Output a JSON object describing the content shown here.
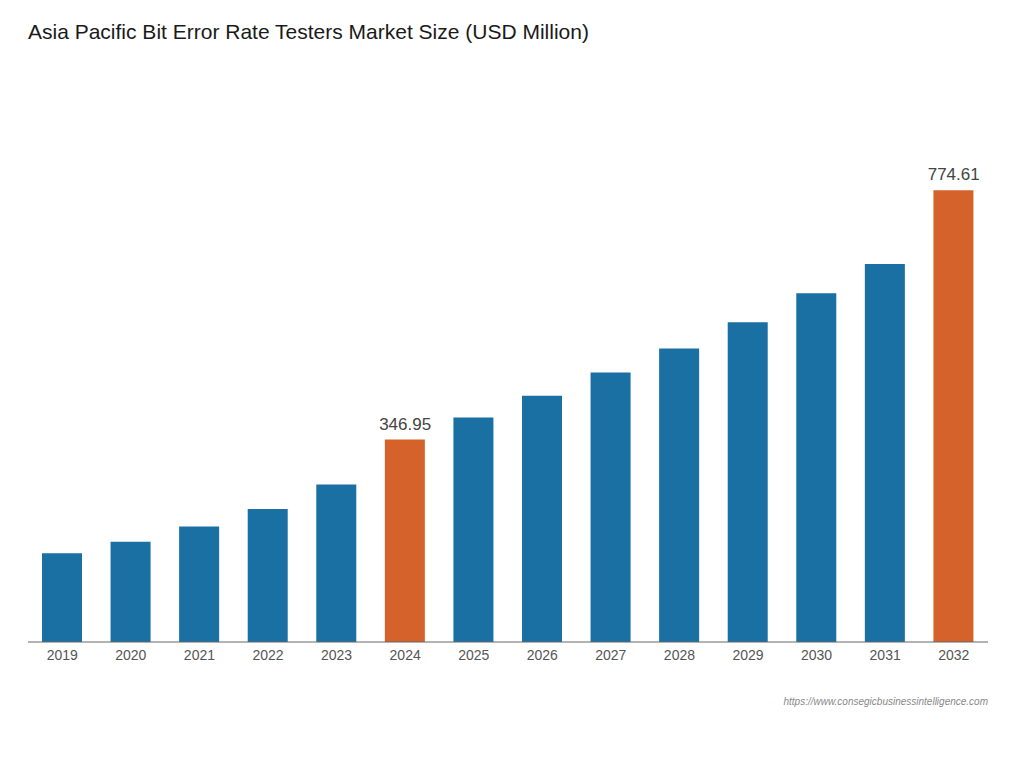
{
  "chart_data": {
    "type": "bar",
    "title": "Asia Pacific Bit Error Rate Testers Market Size (USD Million)",
    "categories": [
      "2019",
      "2020",
      "2021",
      "2022",
      "2023",
      "2024",
      "2025",
      "2026",
      "2027",
      "2028",
      "2029",
      "2030",
      "2031",
      "2032"
    ],
    "values": [
      152,
      172,
      198,
      228,
      270,
      346.95,
      385,
      422,
      462,
      503,
      548,
      598,
      648,
      774.61
    ],
    "colors": [
      "#1a6fa3",
      "#1a6fa3",
      "#1a6fa3",
      "#1a6fa3",
      "#1a6fa3",
      "#d4622a",
      "#1a6fa3",
      "#1a6fa3",
      "#1a6fa3",
      "#1a6fa3",
      "#1a6fa3",
      "#1a6fa3",
      "#1a6fa3",
      "#d4622a"
    ],
    "ylim": [
      0,
      960
    ],
    "tick_labels": "x",
    "grid": false,
    "annotations": [
      {
        "x": "2024",
        "y": 346.95,
        "text": "346.95"
      },
      {
        "x": "2032",
        "y": 774.61,
        "text": "774.61"
      }
    ],
    "watermark": "https://www.consegicbusinessintelligence.com"
  }
}
